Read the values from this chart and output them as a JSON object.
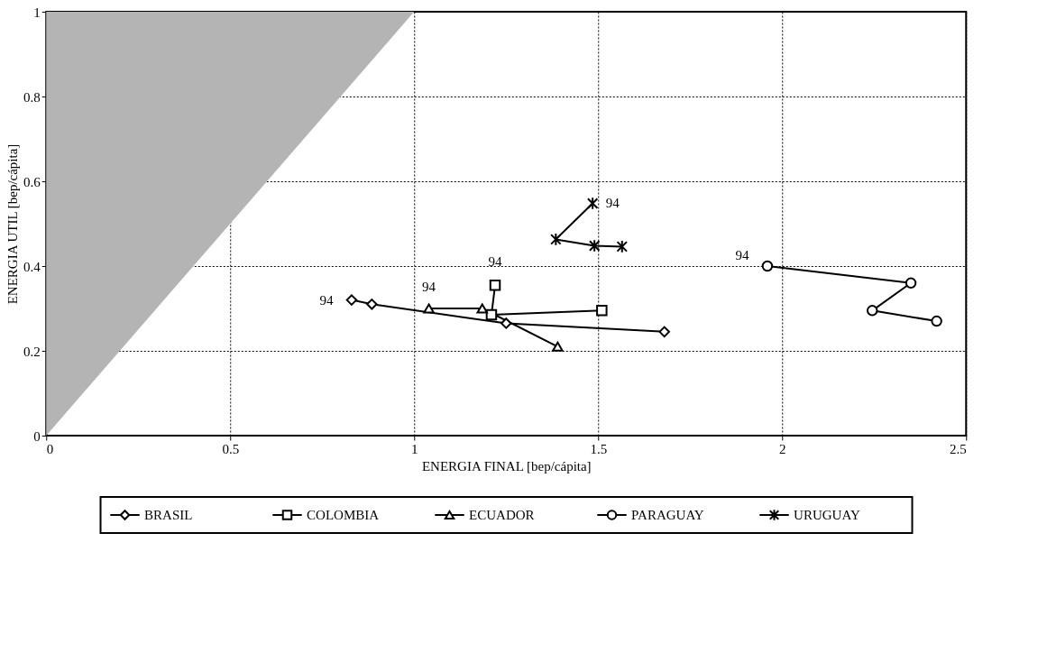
{
  "chart_data": {
    "type": "line",
    "xlabel": "ENERGIA FINAL [bep/cápita]",
    "ylabel": "ENERGIA UTIL [bep/cápita]",
    "xlim": [
      0,
      2.5
    ],
    "xticks": [
      0,
      0.5,
      1,
      1.5,
      2,
      2.5
    ],
    "ylim": [
      0,
      1
    ],
    "yticks": [
      0,
      0.2,
      0.4,
      0.6,
      0.8,
      1
    ],
    "grid": true,
    "legend": "bottom",
    "series": [
      {
        "type": "area",
        "x": [
          0,
          1
        ],
        "values": [
          0,
          1
        ],
        "color": "#b4b4b4"
      },
      {
        "name": "BRASIL",
        "color": "#000000",
        "marker": "diamond",
        "x": [
          0.83,
          0.885,
          1.25,
          1.68
        ],
        "values": [
          0.32,
          0.31,
          0.265,
          0.245
        ]
      },
      {
        "name": "COLOMBIA",
        "color": "#000000",
        "marker": "square",
        "x": [
          1.22,
          1.21,
          1.51
        ],
        "values": [
          0.355,
          0.285,
          0.295
        ]
      },
      {
        "name": "ECUADOR",
        "color": "#000000",
        "marker": "triangle",
        "x": [
          1.04,
          1.185,
          1.39
        ],
        "values": [
          0.3,
          0.3,
          0.21
        ]
      },
      {
        "name": "PARAGUAY",
        "color": "#000000",
        "marker": "circle",
        "x": [
          1.96,
          2.35,
          2.245,
          2.42
        ],
        "values": [
          0.4,
          0.36,
          0.295,
          0.27
        ]
      },
      {
        "name": "URUGUAY",
        "color": "#000000",
        "marker": "cross",
        "x": [
          1.485,
          1.385,
          1.49,
          1.565
        ],
        "values": [
          0.548,
          0.463,
          0.448,
          0.446
        ]
      }
    ],
    "annotations": [
      {
        "text": "94",
        "x": 0.83,
        "y": 0.32
      },
      {
        "text": "94",
        "x": 1.22,
        "y": 0.355
      },
      {
        "text": "94",
        "x": 1.04,
        "y": 0.3
      },
      {
        "text": "94",
        "x": 1.96,
        "y": 0.4
      },
      {
        "text": "94",
        "x": 1.485,
        "y": 0.548
      }
    ]
  }
}
